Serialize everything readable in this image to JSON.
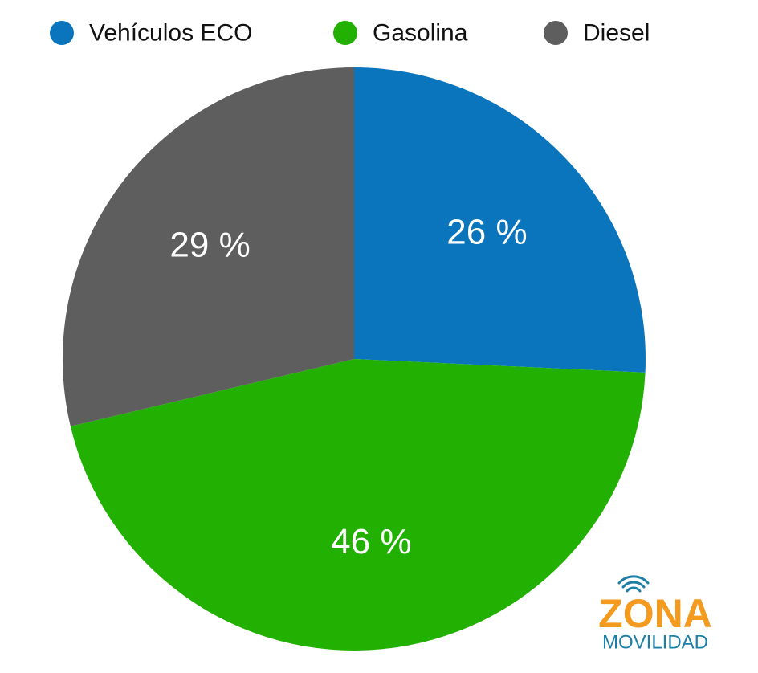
{
  "chart_data": {
    "type": "pie",
    "categories": [
      "Vehículos ECO",
      "Gasolina",
      "Diesel"
    ],
    "values": [
      26,
      46,
      29
    ],
    "value_labels": [
      "26 %",
      "46 %",
      "29 %"
    ],
    "colors": [
      "#0a75bd",
      "#22b102",
      "#5e5e5e"
    ],
    "legend": "top"
  },
  "watermark": [
    "ZONA",
    "MOVILIDAD"
  ]
}
